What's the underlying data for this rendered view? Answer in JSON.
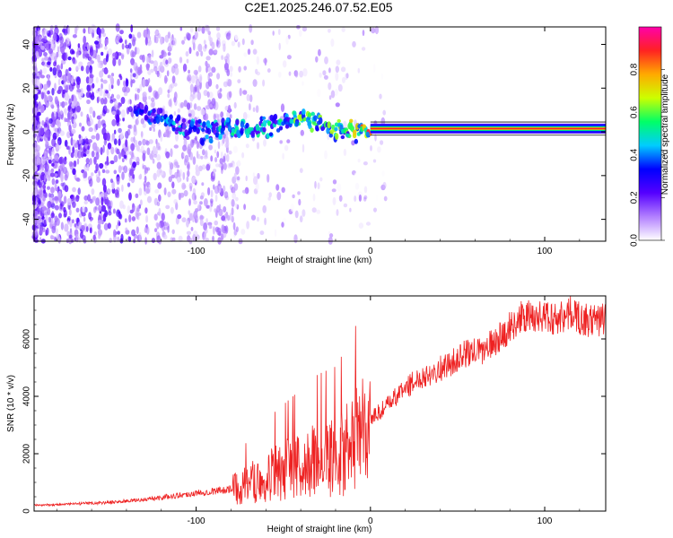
{
  "figure_title": "C2E1.2025.246.07.52.E05",
  "chart_data": [
    {
      "type": "heatmap",
      "title": "C2E1.2025.246.07.52.E05",
      "xlabel": "Height of straight line (km)",
      "ylabel": "Frequency (Hz)",
      "xlim": [
        -193,
        135
      ],
      "ylim": [
        -50,
        48
      ],
      "x_ticks": [
        -100,
        0,
        100
      ],
      "y_ticks": [
        -40,
        -20,
        0,
        20,
        40
      ],
      "colorbar": {
        "label": "Normalized spectral amplitude",
        "range": [
          0,
          1
        ],
        "ticks": [
          0.0,
          0.2,
          0.4,
          0.6,
          0.8
        ],
        "colormap": [
          "#ffffff",
          "#b27fff",
          "#5500ff",
          "#0000ff",
          "#00ccff",
          "#00ff66",
          "#ccff00",
          "#ffaa00",
          "#ff2222",
          "#ff00aa"
        ]
      },
      "ridge": [
        {
          "x": -135,
          "f": 12,
          "amp": 0.35
        },
        {
          "x": -125,
          "f": 8,
          "amp": 0.4
        },
        {
          "x": -110,
          "f": 2,
          "amp": 0.45
        },
        {
          "x": -95,
          "f": 0,
          "amp": 0.45
        },
        {
          "x": -80,
          "f": 1,
          "amp": 0.5
        },
        {
          "x": -60,
          "f": 2,
          "amp": 0.5
        },
        {
          "x": -45,
          "f": 5,
          "amp": 0.6
        },
        {
          "x": -30,
          "f": 4,
          "amp": 0.6
        },
        {
          "x": -15,
          "f": 0,
          "amp": 0.6
        },
        {
          "x": 0,
          "f": 1,
          "amp": 0.85
        },
        {
          "x": 20,
          "f": 1,
          "amp": 0.9
        },
        {
          "x": 60,
          "f": 1,
          "amp": 0.9
        },
        {
          "x": 100,
          "f": 1,
          "amp": 0.9
        },
        {
          "x": 135,
          "f": 1,
          "amp": 0.9
        }
      ]
    },
    {
      "type": "line",
      "xlabel": "Height of straight line (km)",
      "ylabel": "SNR (10 * v/v)",
      "xlim": [
        -193,
        135
      ],
      "ylim": [
        0,
        7500
      ],
      "x_ticks": [
        -100,
        0,
        100
      ],
      "y_ticks": [
        0,
        2000,
        4000,
        6000
      ],
      "color": "#ee2222",
      "series": [
        {
          "name": "SNR",
          "x": [
            -193,
            -170,
            -150,
            -130,
            -110,
            -90,
            -75,
            -60,
            -45,
            -30,
            -20,
            -10,
            0,
            10,
            20,
            30,
            45,
            55,
            65,
            75,
            85,
            95,
            105,
            115,
            125,
            135
          ],
          "y": [
            200,
            250,
            300,
            400,
            550,
            700,
            800,
            1200,
            1500,
            1800,
            1900,
            2300,
            3200,
            3700,
            4300,
            4700,
            5100,
            5500,
            5600,
            6100,
            6700,
            6800,
            6700,
            6900,
            6600,
            6700
          ]
        }
      ]
    }
  ]
}
